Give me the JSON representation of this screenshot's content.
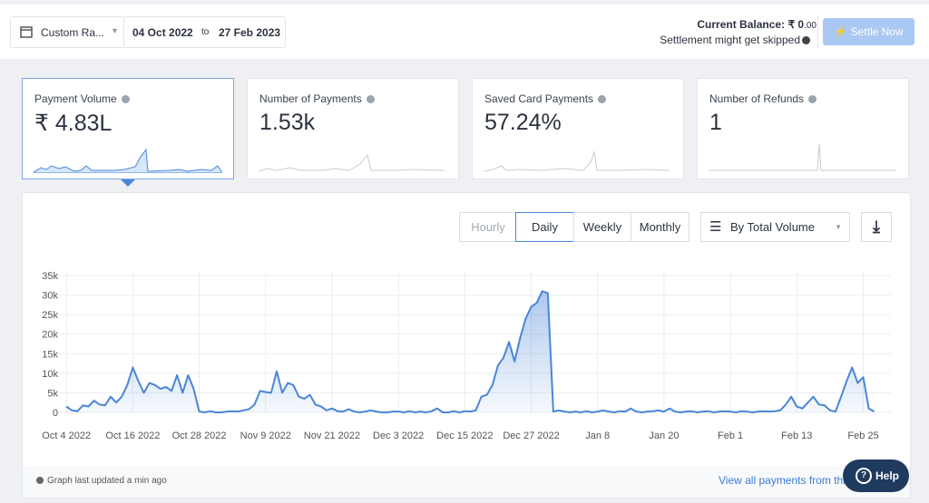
{
  "header": {
    "range_select": "Custom Ra...",
    "from_date": "04 Oct 2022",
    "to_word": "to",
    "to_date": "27 Feb 2023",
    "balance_label": "Current Balance:",
    "balance_value": "₹ 0",
    "balance_decimals": ".00",
    "settlement_note": "Settlement might get skipped",
    "settle_button": "Settle Now"
  },
  "cards": [
    {
      "label": "Payment Volume",
      "value": "₹ 4.83L"
    },
    {
      "label": "Number of Payments",
      "value": "1.53k"
    },
    {
      "label": "Saved Card Payments",
      "value": "57.24%"
    },
    {
      "label": "Number of Refunds",
      "value": "1"
    }
  ],
  "toolbar": {
    "granularity": [
      "Hourly",
      "Daily",
      "Weekly",
      "Monthly"
    ],
    "sort_select": "By Total Volume"
  },
  "chart_data": {
    "type": "area",
    "color": "#4a86d8",
    "grid": true,
    "x": [
      "2022-10-04",
      "2022-10-05",
      "2022-10-06",
      "2022-10-07",
      "2022-10-08",
      "2022-10-09",
      "2022-10-10",
      "2022-10-11",
      "2022-10-12",
      "2022-10-13",
      "2022-10-14",
      "2022-10-15",
      "2022-10-16",
      "2022-10-17",
      "2022-10-18",
      "2022-10-19",
      "2022-10-20",
      "2022-10-21",
      "2022-10-22",
      "2022-10-23",
      "2022-10-24",
      "2022-10-25",
      "2022-10-26",
      "2022-10-27",
      "2022-10-28",
      "2022-10-29",
      "2022-10-30",
      "2022-10-31",
      "2022-11-01",
      "2022-11-02",
      "2022-11-03",
      "2022-11-04",
      "2022-11-05",
      "2022-11-06",
      "2022-11-07",
      "2022-11-08",
      "2022-11-09",
      "2022-11-10",
      "2022-11-11",
      "2022-11-12",
      "2022-11-13",
      "2022-11-14",
      "2022-11-15",
      "2022-11-16",
      "2022-11-17",
      "2022-11-18",
      "2022-11-19",
      "2022-11-20",
      "2022-11-21",
      "2022-11-22",
      "2022-11-23",
      "2022-11-24",
      "2022-11-25",
      "2022-11-26",
      "2022-11-27",
      "2022-11-28",
      "2022-11-29",
      "2022-11-30",
      "2022-12-01",
      "2022-12-02",
      "2022-12-03",
      "2022-12-04",
      "2022-12-05",
      "2022-12-06",
      "2022-12-07",
      "2022-12-08",
      "2022-12-09",
      "2022-12-10",
      "2022-12-11",
      "2022-12-12",
      "2022-12-13",
      "2022-12-14",
      "2022-12-15",
      "2022-12-16",
      "2022-12-17",
      "2022-12-18",
      "2022-12-19",
      "2022-12-20",
      "2022-12-21",
      "2022-12-22",
      "2022-12-23",
      "2022-12-24",
      "2022-12-25",
      "2022-12-26",
      "2022-12-27",
      "2022-12-28",
      "2022-12-29",
      "2022-12-30",
      "2022-12-31",
      "2023-01-01",
      "2023-01-02",
      "2023-01-03",
      "2023-01-04",
      "2023-01-05",
      "2023-01-06",
      "2023-01-07",
      "2023-01-08",
      "2023-01-09",
      "2023-01-10",
      "2023-01-11",
      "2023-01-12",
      "2023-01-13",
      "2023-01-14",
      "2023-01-15",
      "2023-01-16",
      "2023-01-17",
      "2023-01-18",
      "2023-01-19",
      "2023-01-20",
      "2023-01-21",
      "2023-01-22",
      "2023-01-23",
      "2023-01-24",
      "2023-01-25",
      "2023-01-26",
      "2023-01-27",
      "2023-01-28",
      "2023-01-29",
      "2023-01-30",
      "2023-01-31",
      "2023-02-01",
      "2023-02-02",
      "2023-02-03",
      "2023-02-04",
      "2023-02-05",
      "2023-02-06",
      "2023-02-07",
      "2023-02-08",
      "2023-02-09",
      "2023-02-10",
      "2023-02-11",
      "2023-02-12",
      "2023-02-13",
      "2023-02-14",
      "2023-02-15",
      "2023-02-16",
      "2023-02-17",
      "2023-02-18",
      "2023-02-19",
      "2023-02-20",
      "2023-02-21",
      "2023-02-22",
      "2023-02-23",
      "2023-02-24",
      "2023-02-25",
      "2023-02-26",
      "2023-02-27"
    ],
    "values": [
      1500,
      500,
      300,
      1800,
      1500,
      3000,
      2000,
      1800,
      4000,
      2500,
      4000,
      7000,
      11500,
      8000,
      5000,
      7500,
      7000,
      6000,
      6500,
      5500,
      9500,
      5000,
      9500,
      6000,
      200,
      0,
      300,
      0,
      0,
      200,
      300,
      200,
      500,
      800,
      2000,
      5500,
      5200,
      5000,
      10500,
      5000,
      7500,
      7000,
      4000,
      3500,
      4500,
      2000,
      1500,
      500,
      1000,
      300,
      200,
      800,
      200,
      0,
      200,
      500,
      200,
      0,
      0,
      200,
      200,
      0,
      300,
      0,
      200,
      0,
      300,
      1000,
      0,
      0,
      300,
      0,
      300,
      200,
      500,
      4000,
      4500,
      7000,
      12000,
      14000,
      18000,
      13000,
      19000,
      24000,
      27000,
      28000,
      31000,
      30500,
      200,
      500,
      200,
      0,
      200,
      0,
      300,
      0,
      200,
      500,
      200,
      0,
      300,
      200,
      1000,
      200,
      0,
      200,
      300,
      500,
      200,
      1000,
      200,
      0,
      200,
      300,
      0,
      200,
      300,
      0,
      200,
      300,
      200,
      0,
      300,
      200,
      0,
      200,
      300,
      200,
      300,
      500,
      2000,
      4000,
      1500,
      1000,
      2500,
      4000,
      2000,
      1800,
      500,
      200,
      4000,
      8000,
      11500,
      7500,
      9000,
      1000,
      200
    ],
    "xlim": [
      "2022-10-02",
      "2023-03-02"
    ],
    "xticks": [
      {
        "value": "2022-10-04",
        "label": "Oct 4 2022"
      },
      {
        "value": "2022-10-16",
        "label": "Oct 16 2022"
      },
      {
        "value": "2022-10-28",
        "label": "Oct 28 2022"
      },
      {
        "value": "2022-11-09",
        "label": "Nov 9 2022"
      },
      {
        "value": "2022-11-21",
        "label": "Nov 21 2022"
      },
      {
        "value": "2022-12-03",
        "label": "Dec 3 2022"
      },
      {
        "value": "2022-12-15",
        "label": "Dec 15 2022"
      },
      {
        "value": "2022-12-27",
        "label": "Dec 27 2022"
      },
      {
        "value": "2023-01-08",
        "label": "Jan 8"
      },
      {
        "value": "2023-01-20",
        "label": "Jan 20"
      },
      {
        "value": "2023-02-01",
        "label": "Feb 1"
      },
      {
        "value": "2023-02-13",
        "label": "Feb 13"
      },
      {
        "value": "2023-02-25",
        "label": "Feb 25"
      }
    ],
    "ylim": [
      0,
      35000
    ],
    "yticks": [
      0,
      {
        "value": 5000,
        "label": "5k"
      },
      {
        "value": 10000,
        "label": "10k"
      },
      {
        "value": 15000,
        "label": "15k"
      },
      {
        "value": 20000,
        "label": "20k"
      },
      {
        "value": 25000,
        "label": "25k"
      },
      {
        "value": 30000,
        "label": "30k"
      },
      {
        "value": 35000,
        "label": "35k"
      }
    ]
  },
  "footer": {
    "updated_note": "Graph last updated a min ago",
    "view_all_link": "View all payments from this",
    "help_button": "Help"
  }
}
